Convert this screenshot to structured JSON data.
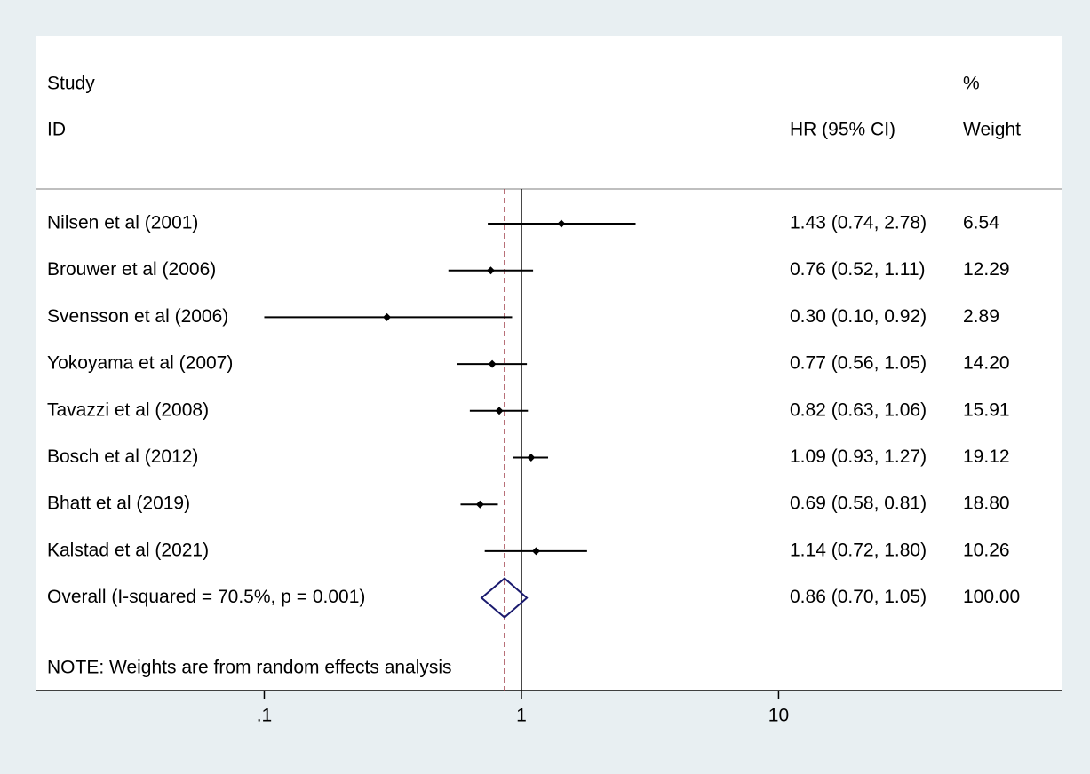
{
  "chart_data": {
    "type": "forest",
    "column_headers": {
      "study_top": "Study",
      "study_bottom": "ID",
      "ci": "HR (95% CI)",
      "weight_top": "%",
      "weight_bottom": "Weight"
    },
    "studies": [
      {
        "name": "Nilsen et al (2001)",
        "hr": 1.43,
        "lower": 0.74,
        "upper": 2.78,
        "ci_label": "1.43 (0.74, 2.78)",
        "weight": 6.54,
        "weight_label": "6.54"
      },
      {
        "name": "Brouwer et al (2006)",
        "hr": 0.76,
        "lower": 0.52,
        "upper": 1.11,
        "ci_label": "0.76 (0.52, 1.11)",
        "weight": 12.29,
        "weight_label": "12.29"
      },
      {
        "name": "Svensson et al (2006)",
        "hr": 0.3,
        "lower": 0.1,
        "upper": 0.92,
        "ci_label": "0.30 (0.10, 0.92)",
        "weight": 2.89,
        "weight_label": "2.89"
      },
      {
        "name": "Yokoyama et al (2007)",
        "hr": 0.77,
        "lower": 0.56,
        "upper": 1.05,
        "ci_label": "0.77 (0.56, 1.05)",
        "weight": 14.2,
        "weight_label": "14.20"
      },
      {
        "name": "Tavazzi et al (2008)",
        "hr": 0.82,
        "lower": 0.63,
        "upper": 1.06,
        "ci_label": "0.82 (0.63, 1.06)",
        "weight": 15.91,
        "weight_label": "15.91"
      },
      {
        "name": "Bosch et al (2012)",
        "hr": 1.09,
        "lower": 0.93,
        "upper": 1.27,
        "ci_label": "1.09 (0.93, 1.27)",
        "weight": 19.12,
        "weight_label": "19.12"
      },
      {
        "name": "Bhatt et al (2019)",
        "hr": 0.69,
        "lower": 0.58,
        "upper": 0.81,
        "ci_label": "0.69 (0.58, 0.81)",
        "weight": 18.8,
        "weight_label": "18.80"
      },
      {
        "name": "Kalstad et al (2021)",
        "hr": 1.14,
        "lower": 0.72,
        "upper": 1.8,
        "ci_label": "1.14 (0.72, 1.80)",
        "weight": 10.26,
        "weight_label": "10.26"
      }
    ],
    "overall": {
      "name": "Overall  (I-squared = 70.5%, p = 0.001)",
      "hr": 0.86,
      "lower": 0.7,
      "upper": 1.05,
      "ci_label": "0.86 (0.70, 1.05)",
      "weight": 100,
      "weight_label": "100.00"
    },
    "note": "NOTE: Weights are from random effects analysis",
    "null_value": 1,
    "log_scale": true,
    "xlim": [
      0.0129,
      127
    ],
    "xticks": [
      {
        "value": 0.1,
        "label": ".1"
      },
      1,
      10
    ],
    "marker_color": "#000000",
    "diamond_color": "#1a1a6e",
    "overall_line_color": "#a0404a"
  }
}
